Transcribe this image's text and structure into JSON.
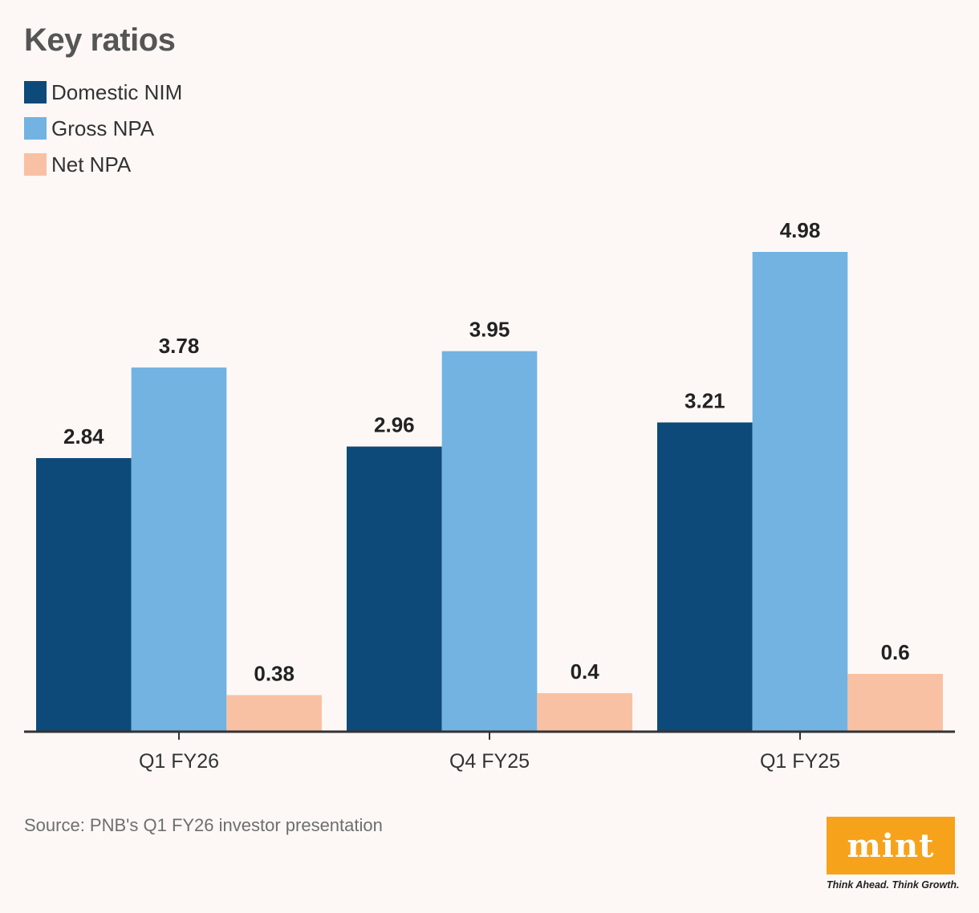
{
  "title": "Key ratios",
  "chart_data": {
    "type": "bar",
    "categories": [
      "Q1 FY26",
      "Q4 FY25",
      "Q1 FY25"
    ],
    "series": [
      {
        "name": "Domestic NIM",
        "values": [
          2.84,
          2.96,
          3.21
        ],
        "value_labels": [
          "2.84",
          "2.96",
          "3.21"
        ],
        "color": "#0d4a7a"
      },
      {
        "name": "Gross NPA",
        "values": [
          3.78,
          3.95,
          4.98
        ],
        "value_labels": [
          "3.78",
          "3.95",
          "4.98"
        ],
        "color": "#72b3e2"
      },
      {
        "name": "Net NPA",
        "values": [
          0.38,
          0.4,
          0.6
        ],
        "value_labels": [
          "0.38",
          "0.4",
          "0.6"
        ],
        "color": "#f9c1a3"
      }
    ],
    "ylim": [
      0,
      6
    ],
    "grid": false,
    "legend": "top-left",
    "data_labels": true
  },
  "source": "Source: PNB's Q1 FY26 investor presentation",
  "logo": {
    "text": "mint",
    "tagline": "Think Ahead. Think Growth.",
    "color": "#f7a21b"
  }
}
